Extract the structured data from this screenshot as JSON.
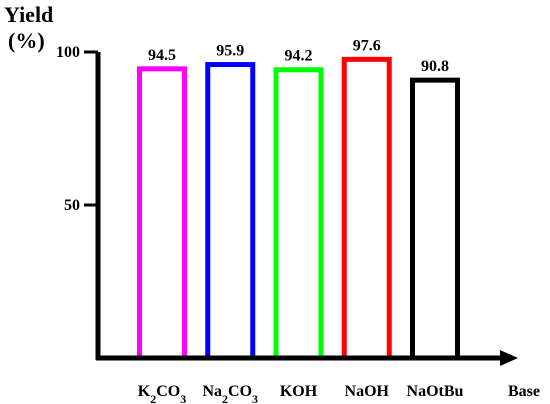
{
  "chart_data": {
    "type": "bar",
    "ylabel_line1": "Yield",
    "ylabel_line2": "(%)",
    "xlabel": "Base",
    "categories": [
      {
        "label": "K2CO3",
        "base": "K",
        "sub1": "2",
        "mid": "CO",
        "sub2": "3"
      },
      {
        "label": "Na2CO3",
        "base": "Na",
        "sub1": "2",
        "mid": "CO",
        "sub2": "3"
      },
      {
        "label": "KOH",
        "base": "KOH",
        "sub1": "",
        "mid": "",
        "sub2": ""
      },
      {
        "label": "NaOH",
        "base": "NaOH",
        "sub1": "",
        "mid": "",
        "sub2": ""
      },
      {
        "label": "NaOtBu",
        "base": "NaOtBu",
        "sub1": "",
        "mid": "",
        "sub2": ""
      }
    ],
    "values": [
      94.5,
      95.9,
      94.2,
      97.6,
      90.8
    ],
    "value_labels": [
      "94.5",
      "95.9",
      "94.2",
      "97.6",
      "90.8"
    ],
    "colors": [
      "#ff00ff",
      "#0000ff",
      "#00ff00",
      "#ff0000",
      "#000000"
    ],
    "ylim": [
      0,
      100
    ],
    "yticks": [
      50,
      100
    ],
    "ytick_labels": [
      "50",
      "100"
    ],
    "grid": false,
    "legend": "none"
  }
}
